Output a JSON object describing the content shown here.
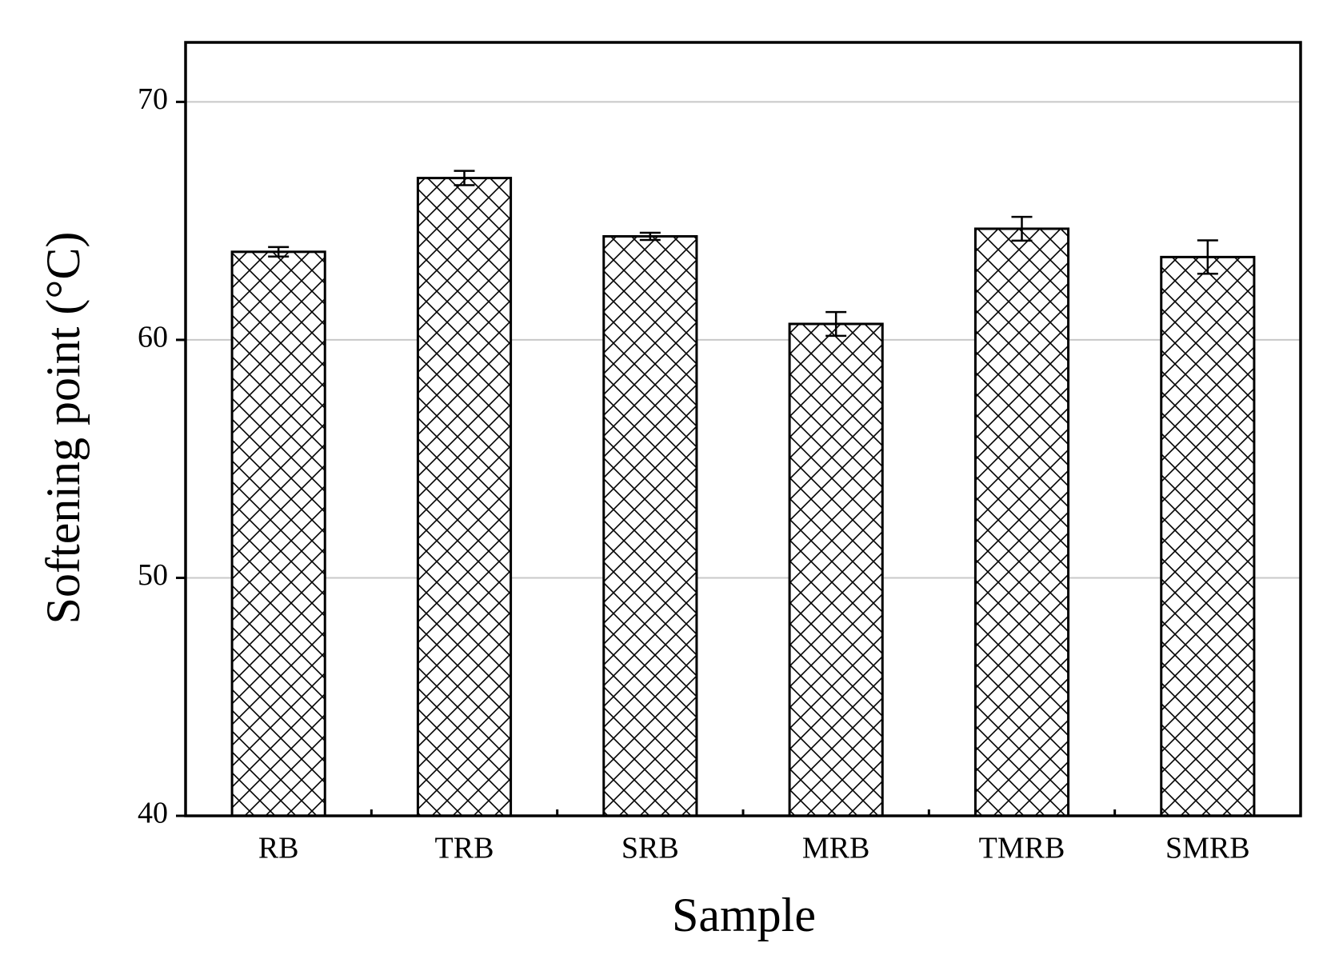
{
  "chart_data": {
    "type": "bar",
    "x_label": "Sample",
    "y_label": "Softening point (°C)",
    "categories": [
      "RB",
      "TRB",
      "SRB",
      "MRB",
      "TMRB",
      "SMRB"
    ],
    "values": [
      63.7,
      66.8,
      64.35,
      60.67,
      64.67,
      63.48
    ],
    "errors": [
      0.2,
      0.3,
      0.15,
      0.5,
      0.5,
      0.7
    ],
    "color": "#000000",
    "ylim": [
      40,
      72.5
    ],
    "yticks": [
      40,
      50,
      60,
      70
    ],
    "grid": true
  }
}
